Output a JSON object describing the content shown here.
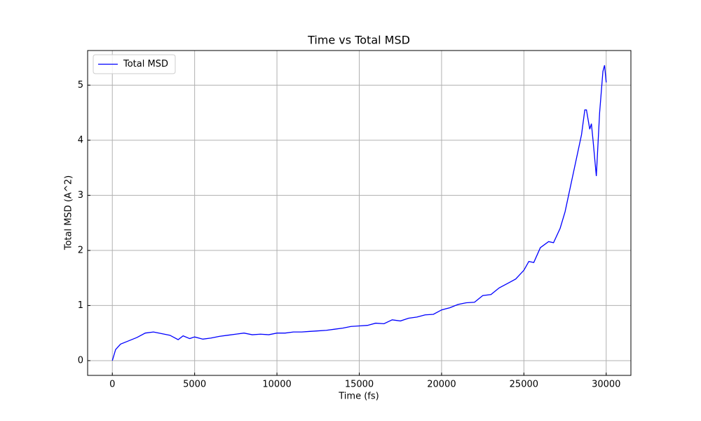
{
  "chart_data": {
    "type": "line",
    "title": "Time vs Total MSD",
    "x_label": "Time (fs)",
    "y_label": "Total MSD (A^2)",
    "x": [
      0,
      200,
      500,
      1000,
      1500,
      2000,
      2500,
      3000,
      3500,
      4000,
      4300,
      4700,
      5000,
      5500,
      6000,
      6500,
      7000,
      7500,
      8000,
      8500,
      9000,
      9500,
      10000,
      10500,
      11000,
      11500,
      12000,
      12500,
      13000,
      13500,
      14000,
      14500,
      15000,
      15500,
      16000,
      16500,
      17000,
      17500,
      18000,
      18500,
      19000,
      19500,
      20000,
      20500,
      21000,
      21500,
      22000,
      22500,
      23000,
      23500,
      24000,
      24500,
      25000,
      25300,
      25600,
      26000,
      26500,
      26800,
      27200,
      27500,
      28000,
      28500,
      28700,
      28800,
      29000,
      29100,
      29200,
      29400,
      29600,
      29800,
      29900,
      30000
    ],
    "series": [
      {
        "name": "Total MSD",
        "color": "#0000ff",
        "values": [
          0,
          0.2,
          0.3,
          0.36,
          0.42,
          0.5,
          0.52,
          0.49,
          0.46,
          0.38,
          0.45,
          0.4,
          0.43,
          0.39,
          0.41,
          0.44,
          0.46,
          0.48,
          0.5,
          0.47,
          0.48,
          0.47,
          0.5,
          0.5,
          0.52,
          0.52,
          0.53,
          0.54,
          0.55,
          0.57,
          0.59,
          0.62,
          0.63,
          0.64,
          0.68,
          0.67,
          0.74,
          0.72,
          0.77,
          0.79,
          0.83,
          0.84,
          0.92,
          0.96,
          1.02,
          1.05,
          1.06,
          1.18,
          1.2,
          1.32,
          1.4,
          1.48,
          1.64,
          1.8,
          1.78,
          2.05,
          2.16,
          2.14,
          2.4,
          2.7,
          3.4,
          4.1,
          4.55,
          4.55,
          4.2,
          4.3,
          4.0,
          3.35,
          4.5,
          5.25,
          5.36,
          5.05
        ]
      }
    ],
    "xlim": [
      -1500,
      31500
    ],
    "xticks": [
      0,
      5000,
      10000,
      15000,
      20000,
      25000,
      30000
    ],
    "ylim": [
      -0.268,
      5.628
    ],
    "yticks": [
      0,
      1,
      2,
      3,
      4,
      5
    ],
    "grid": true,
    "legend": "upper left"
  }
}
